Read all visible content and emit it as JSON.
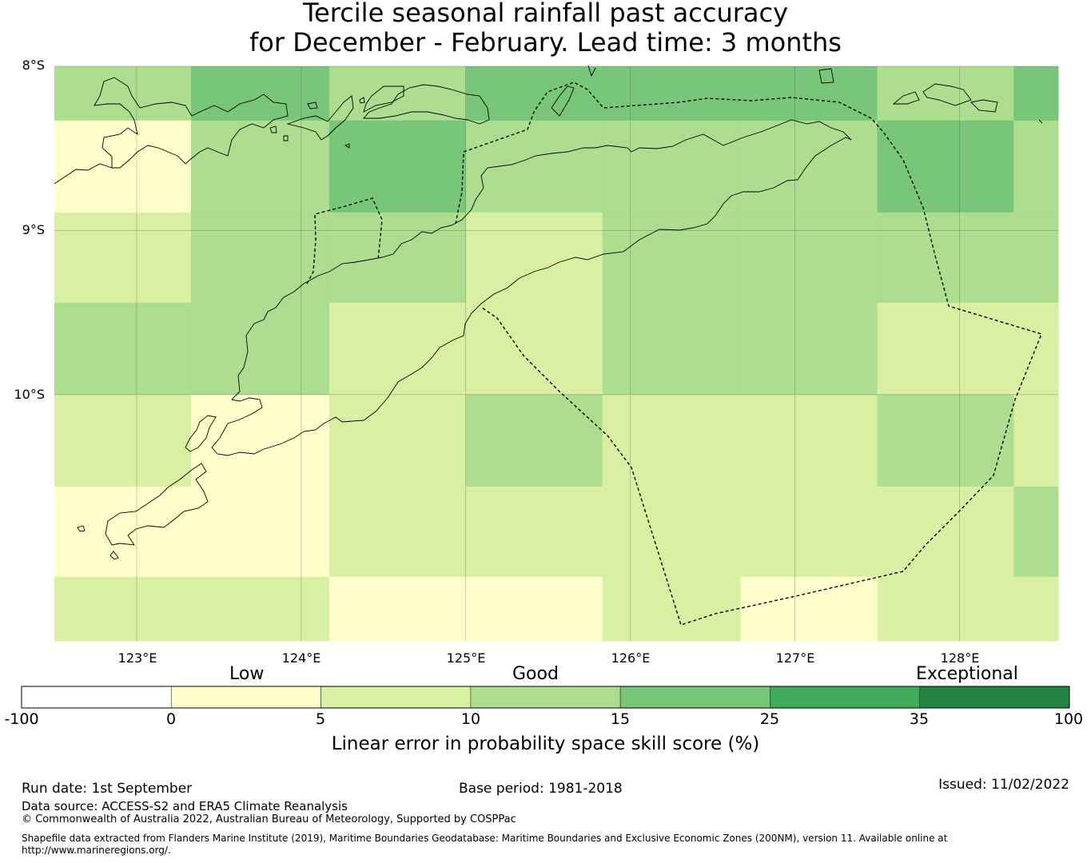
{
  "title": {
    "line1": "Tercile seasonal rainfall past accuracy",
    "line2": "for December - February. Lead time: 3 months"
  },
  "lat_labels": [
    "8°S",
    "9°S",
    "10°S"
  ],
  "lon_labels": [
    "123°E",
    "124°E",
    "125°E",
    "126°E",
    "127°E",
    "128°E"
  ],
  "grid": {
    "lon_edges": [
      122.5,
      123.33,
      124.17,
      125.0,
      125.83,
      126.67,
      127.5,
      128.33,
      128.6
    ],
    "lat_edges": [
      -8.0,
      -8.33,
      -8.89,
      -9.44,
      -10.0,
      -10.56,
      -11.11,
      -11.5
    ],
    "scores": [
      [
        12,
        18,
        12,
        18,
        18,
        18,
        12,
        18
      ],
      [
        3,
        12,
        20,
        12,
        12,
        12,
        18,
        12
      ],
      [
        7,
        12,
        12,
        7,
        12,
        12,
        12,
        12
      ],
      [
        12,
        12,
        7,
        7,
        12,
        12,
        7,
        7
      ],
      [
        7,
        3,
        7,
        12,
        7,
        7,
        12,
        7
      ],
      [
        3,
        3,
        7,
        7,
        7,
        7,
        7,
        12
      ],
      [
        7,
        7,
        3,
        3,
        7,
        3,
        7,
        7
      ]
    ]
  },
  "colorbar": {
    "band_labels": [
      "Low",
      "Good",
      "Exceptional"
    ],
    "ticks": [
      "-100",
      "0",
      "5",
      "10",
      "15",
      "25",
      "35",
      "100"
    ],
    "bins": [
      -100,
      0,
      5,
      10,
      15,
      25,
      35,
      100
    ],
    "colors": [
      "#ffffff",
      "#ffffcc",
      "#d9f0a3",
      "#addd8e",
      "#78c679",
      "#41ab5d",
      "#238443"
    ],
    "title": "Linear error in probability space skill score (%)"
  },
  "footer": {
    "run_date": "Run date: 1st September",
    "base_period": "Base period: 1981-2018",
    "issued": "Issued: 11/02/2022",
    "data_source": "Data source: ACCESS-S2 and ERA5 Climate Reanalysis",
    "copyright": "© Commonwealth of Australia 2022, Australian Bureau of Meteorology, Supported by COSPPac",
    "shapefile_line1": "Shapefile data extracted from Flanders Marine Institute (2019), Maritime Boundaries Geodatabase: Maritime Boundaries and Exclusive Economic Zones (200NM), version 11. Available online at",
    "shapefile_line2": "http://www.marineregions.org/."
  }
}
